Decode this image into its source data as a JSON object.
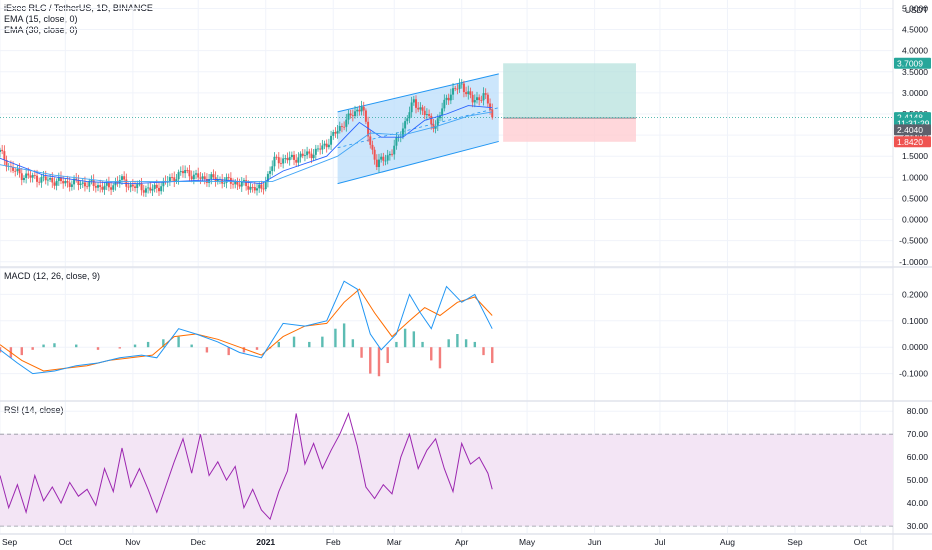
{
  "header": {
    "title": "iExec RLC / TetherUS, 1D, BINANCE",
    "ema1": "EMA (15, close, 0)",
    "ema2": "EMA (30, close, 0)",
    "macd": "MACD (12, 26, close, 9)",
    "rsi": "RSI (14, close)",
    "currency": "USDT"
  },
  "colors": {
    "up": "#26a69a",
    "down": "#ef5350",
    "ema": "#2962ff",
    "macd_line": "#2196f3",
    "signal_line": "#ff6d00",
    "rsi_line": "#9c27b0",
    "rsi_band": "#f3e5f5",
    "channel": "#bbdefb",
    "channel_border": "#2196f3",
    "target_zone": "#b2dfdb",
    "stop_zone": "#ffcdd2",
    "grid": "#f0f3fa"
  },
  "chart_data": [
    {
      "type": "candlestick",
      "title": "iExec RLC / TetherUS, 1D, BINANCE",
      "ylim": [
        -1.1,
        5.2
      ],
      "yticks": [
        "5.0000",
        "4.5000",
        "4.0000",
        "3.5000",
        "3.0000",
        "2.5000",
        "2.0000",
        "1.5000",
        "1.0000",
        "0.5000",
        "0.0000",
        "-0.5000",
        "-1.0000"
      ],
      "ytick_values": [
        5.0,
        4.5,
        4.0,
        3.5,
        3.0,
        2.5,
        2.0,
        1.5,
        1.0,
        0.5,
        0.0,
        -0.5,
        -1.0
      ],
      "x_day_range": [
        0,
        410
      ],
      "xticks": [
        "Sep",
        "Oct",
        "Nov",
        "Dec",
        "2021",
        "Feb",
        "Mar",
        "Apr",
        "May",
        "Jun",
        "Jul",
        "Aug",
        "Sep",
        "Oct"
      ],
      "xtick_days": [
        0,
        30,
        61,
        91,
        122,
        153,
        181,
        212,
        242,
        273,
        303,
        334,
        365,
        395
      ],
      "close_anchors": [
        [
          0,
          1.6
        ],
        [
          5,
          1.2
        ],
        [
          10,
          1.05
        ],
        [
          20,
          0.95
        ],
        [
          30,
          0.88
        ],
        [
          40,
          0.85
        ],
        [
          50,
          0.75
        ],
        [
          55,
          0.95
        ],
        [
          60,
          0.8
        ],
        [
          70,
          0.7
        ],
        [
          80,
          1.0
        ],
        [
          85,
          1.15
        ],
        [
          90,
          1.0
        ],
        [
          100,
          0.95
        ],
        [
          110,
          0.85
        ],
        [
          120,
          0.7
        ],
        [
          126,
          1.4
        ],
        [
          135,
          1.45
        ],
        [
          145,
          1.6
        ],
        [
          150,
          1.8
        ],
        [
          158,
          2.3
        ],
        [
          166,
          2.7
        ],
        [
          170,
          1.8
        ],
        [
          173,
          1.3
        ],
        [
          180,
          1.6
        ],
        [
          186,
          2.3
        ],
        [
          190,
          2.8
        ],
        [
          195,
          2.5
        ],
        [
          200,
          2.2
        ],
        [
          205,
          2.9
        ],
        [
          212,
          3.2
        ],
        [
          217,
          2.8
        ],
        [
          222,
          2.95
        ],
        [
          225,
          2.65
        ],
        [
          226,
          2.4
        ]
      ],
      "ema15": [
        [
          0,
          1.45
        ],
        [
          20,
          1.05
        ],
        [
          40,
          0.9
        ],
        [
          60,
          0.85
        ],
        [
          80,
          0.9
        ],
        [
          100,
          0.95
        ],
        [
          120,
          0.85
        ],
        [
          130,
          1.15
        ],
        [
          150,
          1.5
        ],
        [
          165,
          2.3
        ],
        [
          175,
          1.95
        ],
        [
          185,
          1.95
        ],
        [
          195,
          2.35
        ],
        [
          205,
          2.5
        ],
        [
          215,
          2.7
        ],
        [
          226,
          2.65
        ]
      ],
      "ema30": [
        [
          0,
          1.3
        ],
        [
          25,
          1.05
        ],
        [
          50,
          0.9
        ],
        [
          80,
          0.9
        ],
        [
          110,
          0.9
        ],
        [
          125,
          0.9
        ],
        [
          140,
          1.2
        ],
        [
          155,
          1.5
        ],
        [
          170,
          2.05
        ],
        [
          185,
          2.0
        ],
        [
          200,
          2.2
        ],
        [
          215,
          2.45
        ],
        [
          226,
          2.55
        ]
      ],
      "channel_lines": {
        "upper": [
          [
            155,
            2.55
          ],
          [
            229,
            3.45
          ]
        ],
        "lower": [
          [
            155,
            0.85
          ],
          [
            229,
            1.85
          ]
        ]
      },
      "position": {
        "start_day": 231,
        "end_day": 292,
        "entry": 2.404,
        "target": 3.7009,
        "stop": 1.842
      },
      "price_tags": [
        {
          "label": "3.7009",
          "value": 3.7009,
          "color": "#26a69a"
        },
        {
          "label": "2.4148",
          "value": 2.4148,
          "color": "#26a69a"
        },
        {
          "label": "11:31:29",
          "value": 2.28,
          "color": "#26a69a"
        },
        {
          "label": "2.4040",
          "value": 2.125,
          "color": "#5d606b"
        },
        {
          "label": "1.8420",
          "value": 1.842,
          "color": "#ef5350"
        }
      ]
    },
    {
      "type": "line",
      "title": "MACD (12, 26, close, 9)",
      "ylim": [
        -0.2,
        0.3
      ],
      "yticks": [
        "0.3000",
        "0.2000",
        "0.1000",
        "0.0000",
        "-0.1000"
      ],
      "ytick_values": [
        0.3,
        0.2,
        0.1,
        0.0,
        -0.1
      ],
      "series": [
        {
          "name": "MACD",
          "values": [
            [
              0,
              -0.01
            ],
            [
              8,
              -0.06
            ],
            [
              15,
              -0.1
            ],
            [
              25,
              -0.09
            ],
            [
              35,
              -0.07
            ],
            [
              45,
              -0.06
            ],
            [
              55,
              -0.04
            ],
            [
              65,
              -0.03
            ],
            [
              72,
              -0.04
            ],
            [
              82,
              0.07
            ],
            [
              90,
              0.05
            ],
            [
              100,
              0.02
            ],
            [
              110,
              -0.02
            ],
            [
              120,
              -0.04
            ],
            [
              130,
              0.09
            ],
            [
              140,
              0.08
            ],
            [
              150,
              0.1
            ],
            [
              158,
              0.25
            ],
            [
              164,
              0.22
            ],
            [
              170,
              0.05
            ],
            [
              175,
              -0.01
            ],
            [
              182,
              0.05
            ],
            [
              188,
              0.2
            ],
            [
              193,
              0.13
            ],
            [
              198,
              0.07
            ],
            [
              205,
              0.23
            ],
            [
              212,
              0.17
            ],
            [
              218,
              0.2
            ],
            [
              226,
              0.07
            ]
          ]
        },
        {
          "name": "Signal",
          "values": [
            [
              0,
              0.01
            ],
            [
              10,
              -0.05
            ],
            [
              20,
              -0.09
            ],
            [
              30,
              -0.08
            ],
            [
              40,
              -0.07
            ],
            [
              50,
              -0.05
            ],
            [
              60,
              -0.04
            ],
            [
              70,
              -0.03
            ],
            [
              80,
              0.04
            ],
            [
              90,
              0.05
            ],
            [
              100,
              0.03
            ],
            [
              110,
              0.0
            ],
            [
              120,
              -0.03
            ],
            [
              130,
              0.04
            ],
            [
              140,
              0.08
            ],
            [
              150,
              0.09
            ],
            [
              158,
              0.17
            ],
            [
              165,
              0.22
            ],
            [
              172,
              0.13
            ],
            [
              180,
              0.04
            ],
            [
              188,
              0.1
            ],
            [
              195,
              0.15
            ],
            [
              202,
              0.12
            ],
            [
              210,
              0.17
            ],
            [
              218,
              0.19
            ],
            [
              226,
              0.12
            ]
          ]
        }
      ],
      "histogram": [
        [
          0,
          -0.02
        ],
        [
          5,
          -0.04
        ],
        [
          10,
          -0.03
        ],
        [
          15,
          -0.01
        ],
        [
          20,
          0.01
        ],
        [
          25,
          0.015
        ],
        [
          35,
          0.01
        ],
        [
          45,
          -0.01
        ],
        [
          55,
          -0.005
        ],
        [
          62,
          0.01
        ],
        [
          68,
          0.02
        ],
        [
          75,
          0.03
        ],
        [
          82,
          0.04
        ],
        [
          88,
          0.01
        ],
        [
          95,
          -0.02
        ],
        [
          105,
          -0.03
        ],
        [
          112,
          -0.02
        ],
        [
          118,
          -0.01
        ],
        [
          124,
          -0.005
        ],
        [
          128,
          0.02
        ],
        [
          135,
          0.04
        ],
        [
          142,
          0.02
        ],
        [
          148,
          0.04
        ],
        [
          154,
          0.07
        ],
        [
          158,
          0.09
        ],
        [
          162,
          0.03
        ],
        [
          166,
          -0.04
        ],
        [
          170,
          -0.1
        ],
        [
          174,
          -0.11
        ],
        [
          178,
          -0.06
        ],
        [
          182,
          0.02
        ],
        [
          186,
          0.07
        ],
        [
          190,
          0.06
        ],
        [
          194,
          0.02
        ],
        [
          198,
          -0.05
        ],
        [
          202,
          -0.08
        ],
        [
          206,
          0.03
        ],
        [
          210,
          0.05
        ],
        [
          214,
          0.03
        ],
        [
          218,
          0.02
        ],
        [
          222,
          -0.03
        ],
        [
          226,
          -0.06
        ]
      ]
    },
    {
      "type": "line",
      "title": "RSI (14, close)",
      "ylim": [
        27,
        84
      ],
      "yticks": [
        "80.00",
        "70.00",
        "60.00",
        "50.00",
        "40.00",
        "30.00"
      ],
      "ytick_values": [
        80,
        70,
        60,
        50,
        40,
        30
      ],
      "band": [
        30,
        70
      ],
      "series": [
        {
          "name": "RSI",
          "values": [
            [
              0,
              52
            ],
            [
              4,
              38
            ],
            [
              8,
              48
            ],
            [
              12,
              36
            ],
            [
              16,
              52
            ],
            [
              20,
              41
            ],
            [
              24,
              47
            ],
            [
              28,
              40
            ],
            [
              32,
              49
            ],
            [
              36,
              43
            ],
            [
              40,
              46
            ],
            [
              44,
              39
            ],
            [
              48,
              55
            ],
            [
              52,
              45
            ],
            [
              56,
              64
            ],
            [
              60,
              47
            ],
            [
              64,
              55
            ],
            [
              68,
              46
            ],
            [
              72,
              36
            ],
            [
              76,
              47
            ],
            [
              80,
              58
            ],
            [
              84,
              68
            ],
            [
              88,
              53
            ],
            [
              92,
              70
            ],
            [
              96,
              52
            ],
            [
              100,
              58
            ],
            [
              104,
              50
            ],
            [
              108,
              56
            ],
            [
              112,
              38
            ],
            [
              116,
              46
            ],
            [
              120,
              37
            ],
            [
              124,
              33
            ],
            [
              128,
              45
            ],
            [
              132,
              54
            ],
            [
              136,
              79
            ],
            [
              140,
              57
            ],
            [
              144,
              66
            ],
            [
              148,
              55
            ],
            [
              152,
              63
            ],
            [
              156,
              70
            ],
            [
              160,
              79
            ],
            [
              164,
              65
            ],
            [
              168,
              47
            ],
            [
              172,
              42
            ],
            [
              176,
              48
            ],
            [
              180,
              44
            ],
            [
              184,
              60
            ],
            [
              188,
              70
            ],
            [
              192,
              55
            ],
            [
              196,
              63
            ],
            [
              200,
              68
            ],
            [
              204,
              55
            ],
            [
              208,
              45
            ],
            [
              212,
              66
            ],
            [
              216,
              57
            ],
            [
              220,
              60
            ],
            [
              224,
              53
            ],
            [
              226,
              46
            ]
          ]
        }
      ]
    }
  ]
}
